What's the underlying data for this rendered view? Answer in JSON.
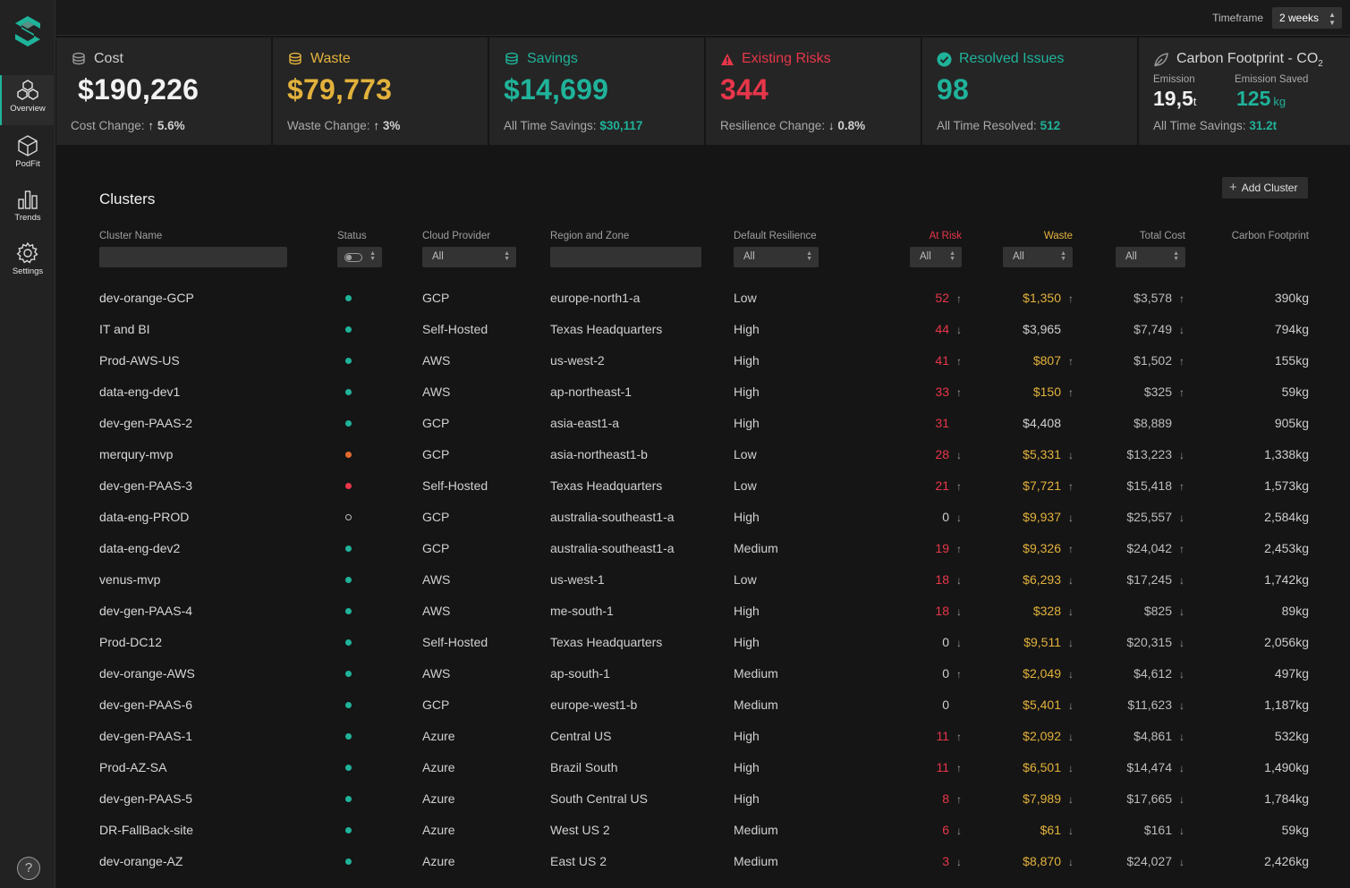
{
  "topbar": {
    "timeframe_label": "Timeframe",
    "timeframe_value": "2 weeks"
  },
  "sidebar": {
    "items": [
      {
        "label": "Overview",
        "icon": "cubes-icon",
        "active": true
      },
      {
        "label": "PodFit",
        "icon": "cube-icon",
        "active": false
      },
      {
        "label": "Trends",
        "icon": "bar-chart-icon",
        "active": false
      },
      {
        "label": "Settings",
        "icon": "gear-icon",
        "active": false
      }
    ],
    "help": "?"
  },
  "kpis": {
    "cost": {
      "title": "Cost",
      "value": "$190,226",
      "foot_label": "Cost Change:",
      "foot_value": "5.6%",
      "arrow": "↑"
    },
    "waste": {
      "title": "Waste",
      "value": "$79,773",
      "foot_label": "Waste Change:",
      "foot_value": "3%",
      "arrow": "↑"
    },
    "savings": {
      "title": "Savings",
      "value": "$14,699",
      "foot_label": "All Time Savings:",
      "foot_value": "$30,117"
    },
    "risks": {
      "title": "Existing Risks",
      "value": "344",
      "foot_label": "Resilience Change:",
      "foot_value": "0.8%",
      "arrow": "↓"
    },
    "resolved": {
      "title": "Resolved Issues",
      "value": "98",
      "foot_label": "All Time Resolved:",
      "foot_value": "512"
    },
    "carbon": {
      "title": "Carbon Footprint - CO",
      "title_sub": "2",
      "emission_label": "Emission",
      "emission_value": "19,5",
      "emission_unit": "t",
      "saved_label": "Emission Saved",
      "saved_value": "125",
      "saved_unit": "kg",
      "foot_label": "All Time Savings:",
      "foot_value": "31.2t"
    }
  },
  "colors": {
    "accent": "#1fb39a",
    "yellow": "#e3b23c",
    "red": "#e8364a"
  },
  "clusters": {
    "title": "Clusters",
    "add_button": "Add Cluster",
    "columns": {
      "name": "Cluster Name",
      "status": "Status",
      "cloud": "Cloud Provider",
      "region": "Region and Zone",
      "resilience": "Default Resilience",
      "risk": "At Risk",
      "waste": "Waste",
      "cost": "Total Cost",
      "carbon": "Carbon Footprint"
    },
    "filters": {
      "cloud": "All",
      "resilience": "All",
      "risk": "All",
      "waste": "All",
      "cost": "All"
    },
    "rows": [
      {
        "name": "dev-orange-GCP",
        "status": "green",
        "cloud": "GCP",
        "region": "europe-north1-a",
        "resilience": "Low",
        "risk": "52",
        "risk_dir": "up",
        "waste": "$1,350",
        "waste_dir": "up",
        "waste_flag": true,
        "cost": "$3,578",
        "cost_dir": "up",
        "carbon": "390kg"
      },
      {
        "name": "IT and BI",
        "status": "green",
        "cloud": "Self-Hosted",
        "region": "Texas Headquarters",
        "resilience": "High",
        "risk": "44",
        "risk_dir": "down",
        "waste": "$3,965",
        "waste_dir": "",
        "waste_flag": false,
        "cost": "$7,749",
        "cost_dir": "down",
        "carbon": "794kg"
      },
      {
        "name": "Prod-AWS-US",
        "status": "green",
        "cloud": "AWS",
        "region": "us-west-2",
        "resilience": "High",
        "risk": "41",
        "risk_dir": "up",
        "waste": "$807",
        "waste_dir": "up",
        "waste_flag": true,
        "cost": "$1,502",
        "cost_dir": "up",
        "carbon": "155kg"
      },
      {
        "name": "data-eng-dev1",
        "status": "green",
        "cloud": "AWS",
        "region": "ap-northeast-1",
        "resilience": "High",
        "risk": "33",
        "risk_dir": "up",
        "waste": "$150",
        "waste_dir": "up",
        "waste_flag": true,
        "cost": "$325",
        "cost_dir": "up",
        "carbon": "59kg"
      },
      {
        "name": "dev-gen-PAAS-2",
        "status": "green",
        "cloud": "GCP",
        "region": "asia-east1-a",
        "resilience": "High",
        "risk": "31",
        "risk_dir": "",
        "waste": "$4,408",
        "waste_dir": "",
        "waste_flag": false,
        "cost": "$8,889",
        "cost_dir": "",
        "carbon": "905kg"
      },
      {
        "name": "merqury-mvp",
        "status": "orange",
        "cloud": "GCP",
        "region": "asia-northeast1-b",
        "resilience": "Low",
        "risk": "28",
        "risk_dir": "down",
        "waste": "$5,331",
        "waste_dir": "down",
        "waste_flag": true,
        "cost": "$13,223",
        "cost_dir": "down",
        "carbon": "1,338kg"
      },
      {
        "name": "dev-gen-PAAS-3",
        "status": "red",
        "cloud": "Self-Hosted",
        "region": "Texas Headquarters",
        "resilience": "Low",
        "risk": "21",
        "risk_dir": "up",
        "waste": "$7,721",
        "waste_dir": "up",
        "waste_flag": true,
        "cost": "$15,418",
        "cost_dir": "up",
        "carbon": "1,573kg"
      },
      {
        "name": "data-eng-PROD",
        "status": "empty",
        "cloud": "GCP",
        "region": "australia-southeast1-a",
        "resilience": "High",
        "risk": "0",
        "risk_dir": "down",
        "waste": "$9,937",
        "waste_dir": "down",
        "waste_flag": true,
        "cost": "$25,557",
        "cost_dir": "down",
        "carbon": "2,584kg"
      },
      {
        "name": "data-eng-dev2",
        "status": "green",
        "cloud": "GCP",
        "region": "australia-southeast1-a",
        "resilience": "Medium",
        "risk": "19",
        "risk_dir": "up",
        "waste": "$9,326",
        "waste_dir": "up",
        "waste_flag": true,
        "cost": "$24,042",
        "cost_dir": "up",
        "carbon": "2,453kg"
      },
      {
        "name": "venus-mvp",
        "status": "green",
        "cloud": "AWS",
        "region": "us-west-1",
        "resilience": "Low",
        "risk": "18",
        "risk_dir": "down",
        "waste": "$6,293",
        "waste_dir": "down",
        "waste_flag": true,
        "cost": "$17,245",
        "cost_dir": "down",
        "carbon": "1,742kg"
      },
      {
        "name": "dev-gen-PAAS-4",
        "status": "green",
        "cloud": "AWS",
        "region": "me-south-1",
        "resilience": "High",
        "risk": "18",
        "risk_dir": "down",
        "waste": "$328",
        "waste_dir": "down",
        "waste_flag": true,
        "cost": "$825",
        "cost_dir": "down",
        "carbon": "89kg"
      },
      {
        "name": "Prod-DC12",
        "status": "green",
        "cloud": "Self-Hosted",
        "region": "Texas Headquarters",
        "resilience": "High",
        "risk": "0",
        "risk_dir": "down",
        "waste": "$9,511",
        "waste_dir": "down",
        "waste_flag": true,
        "cost": "$20,315",
        "cost_dir": "down",
        "carbon": "2,056kg"
      },
      {
        "name": "dev-orange-AWS",
        "status": "green",
        "cloud": "AWS",
        "region": "ap-south-1",
        "resilience": "Medium",
        "risk": "0",
        "risk_dir": "up",
        "waste": "$2,049",
        "waste_dir": "down",
        "waste_flag": true,
        "cost": "$4,612",
        "cost_dir": "down",
        "carbon": "497kg"
      },
      {
        "name": "dev-gen-PAAS-6",
        "status": "green",
        "cloud": "GCP",
        "region": "europe-west1-b",
        "resilience": "Medium",
        "risk": "0",
        "risk_dir": "",
        "waste": "$5,401",
        "waste_dir": "down",
        "waste_flag": true,
        "cost": "$11,623",
        "cost_dir": "down",
        "carbon": "1,187kg"
      },
      {
        "name": "dev-gen-PAAS-1",
        "status": "green",
        "cloud": "Azure",
        "region": "Central US",
        "resilience": "High",
        "risk": "11",
        "risk_dir": "up",
        "waste": "$2,092",
        "waste_dir": "down",
        "waste_flag": true,
        "cost": "$4,861",
        "cost_dir": "down",
        "carbon": "532kg"
      },
      {
        "name": "Prod-AZ-SA",
        "status": "green",
        "cloud": "Azure",
        "region": "Brazil South",
        "resilience": "High",
        "risk": "11",
        "risk_dir": "up",
        "waste": "$6,501",
        "waste_dir": "down",
        "waste_flag": true,
        "cost": "$14,474",
        "cost_dir": "down",
        "carbon": "1,490kg"
      },
      {
        "name": "dev-gen-PAAS-5",
        "status": "green",
        "cloud": "Azure",
        "region": "South Central US",
        "resilience": "High",
        "risk": "8",
        "risk_dir": "up",
        "waste": "$7,989",
        "waste_dir": "down",
        "waste_flag": true,
        "cost": "$17,665",
        "cost_dir": "down",
        "carbon": "1,784kg"
      },
      {
        "name": "DR-FallBack-site",
        "status": "green",
        "cloud": "Azure",
        "region": "West US 2",
        "resilience": "Medium",
        "risk": "6",
        "risk_dir": "down",
        "waste": "$61",
        "waste_dir": "down",
        "waste_flag": true,
        "cost": "$161",
        "cost_dir": "down",
        "carbon": "59kg"
      },
      {
        "name": "dev-orange-AZ",
        "status": "green",
        "cloud": "Azure",
        "region": "East US 2",
        "resilience": "Medium",
        "risk": "3",
        "risk_dir": "down",
        "waste": "$8,870",
        "waste_dir": "down",
        "waste_flag": true,
        "cost": "$24,027",
        "cost_dir": "down",
        "carbon": "2,426kg"
      }
    ]
  }
}
